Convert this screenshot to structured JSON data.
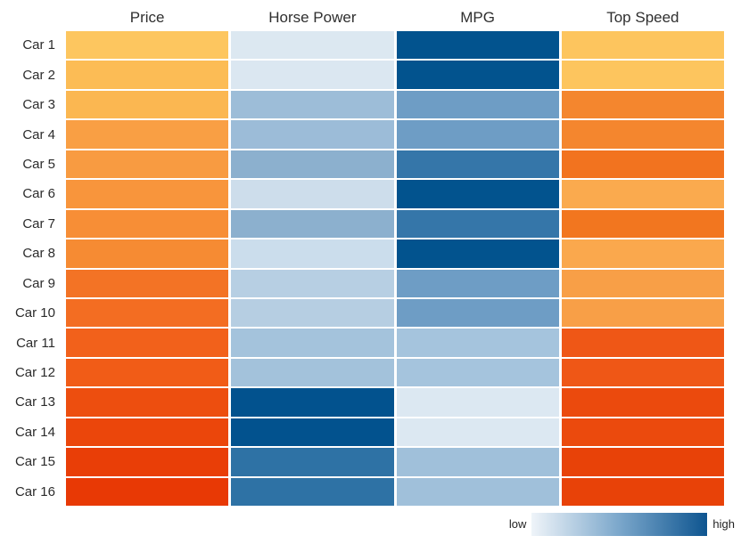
{
  "chart_data": {
    "type": "heatmap",
    "title": "",
    "rows": [
      "Car 1",
      "Car 2",
      "Car 3",
      "Car 4",
      "Car 5",
      "Car 6",
      "Car 7",
      "Car 8",
      "Car 9",
      "Car 10",
      "Car 11",
      "Car 12",
      "Car 13",
      "Car 14",
      "Car 15",
      "Car 16"
    ],
    "columns": [
      "Price",
      "Horse Power",
      "MPG",
      "Top Speed"
    ],
    "legend": {
      "low_label": "low",
      "high_label": "high",
      "gradient": [
        "#EFF4F9",
        "#7BA7CB",
        "#0E5590"
      ],
      "position": "bottom-right"
    },
    "palettes": {
      "orange_columns": [
        "Price",
        "Top Speed"
      ],
      "blue_columns": [
        "Horse Power",
        "MPG"
      ]
    },
    "cell_colors": {
      "Price": [
        "#FDC65F",
        "#FCBC55",
        "#FBB751",
        "#F99F44",
        "#F89B41",
        "#F8953C",
        "#F78E36",
        "#F68B33",
        "#F37325",
        "#F36D22",
        "#F2611B",
        "#F15C17",
        "#ED4E0F",
        "#EB460B",
        "#E93E07",
        "#E83905"
      ],
      "Horse Power": [
        "#DCE8F1",
        "#DBE7F1",
        "#9DBDD8",
        "#9CBCD8",
        "#8CB0CE",
        "#CDDDEB",
        "#8CB0CE",
        "#CBDDEC",
        "#B7CFE3",
        "#B6CEE2",
        "#A4C3DC",
        "#A3C2DB",
        "#02528E",
        "#02528E",
        "#2E72A5",
        "#2E72A5"
      ],
      "MPG": [
        "#02538E",
        "#02538E",
        "#6E9DC5",
        "#6E9DC5",
        "#3576A9",
        "#02538E",
        "#3576A9",
        "#02538E",
        "#6E9DC5",
        "#6E9DC5",
        "#A5C4DD",
        "#A5C4DD",
        "#DCE8F2",
        "#DCE8F2",
        "#A0C0DA",
        "#A0C0DA"
      ],
      "Top Speed": [
        "#FDC55E",
        "#FDC55E",
        "#F4862E",
        "#F4862E",
        "#F2731F",
        "#FAAA4E",
        "#F2761F",
        "#FAA84D",
        "#F89F47",
        "#F89F47",
        "#EF5716",
        "#EF5716",
        "#EB4A0D",
        "#EB4A0D",
        "#E84208",
        "#E84208"
      ]
    }
  }
}
